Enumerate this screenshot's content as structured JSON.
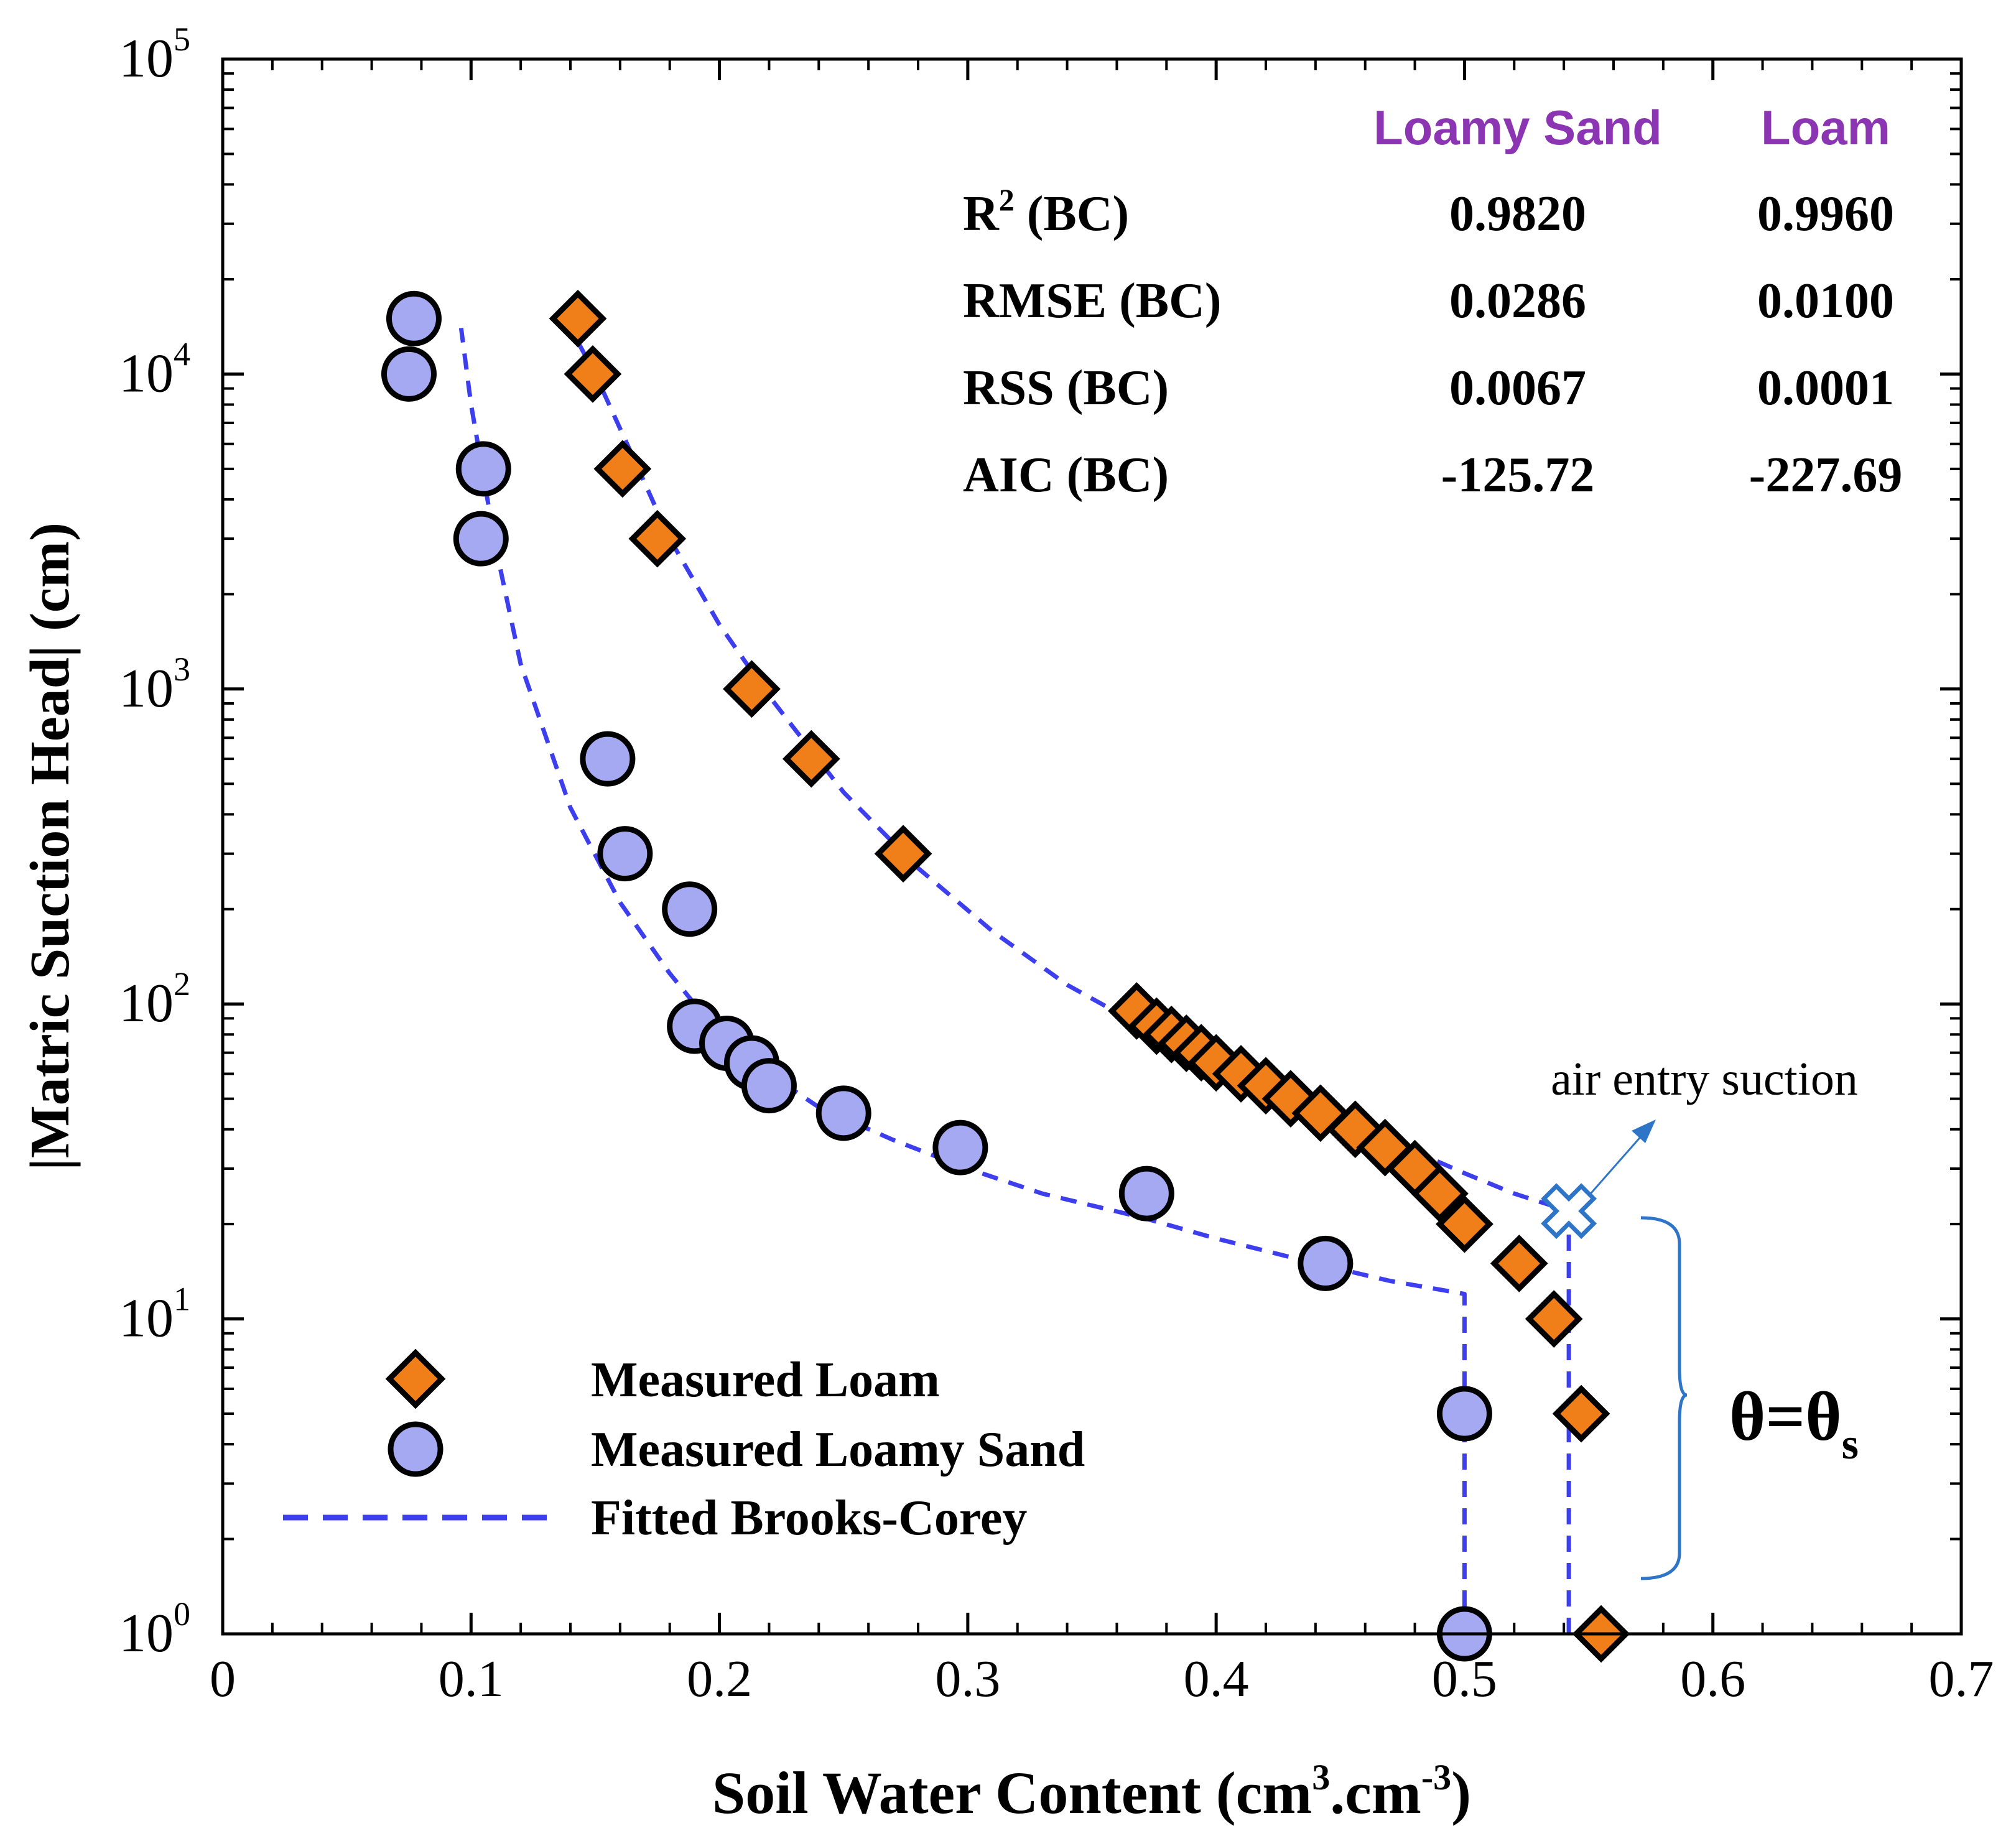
{
  "chart_data": {
    "type": "scatter",
    "title": "",
    "xlabel_main": "Soil Water Content (cm",
    "xlabel_sup1": "3",
    "xlabel_mid": ".cm",
    "xlabel_sup2": "-3",
    "xlabel_end": ")",
    "ylabel": "|Matric Suction Head| (cm)",
    "xlim": [
      0,
      0.7
    ],
    "ylim": [
      1,
      100000
    ],
    "yscale": "log",
    "x_ticks": [
      0,
      0.1,
      0.2,
      0.3,
      0.4,
      0.5,
      0.6,
      0.7
    ],
    "x_tick_labels": [
      "0",
      "0.1",
      "0.2",
      "0.3",
      "0.4",
      "0.5",
      "0.6",
      "0.7"
    ],
    "y_tick_bases": [
      "10",
      "10",
      "10",
      "10",
      "10",
      "10"
    ],
    "y_tick_exponents": [
      "0",
      "1",
      "2",
      "3",
      "4",
      "5"
    ],
    "series": [
      {
        "name": "Measured Loam",
        "marker": "diamond",
        "color": "#F07F1A",
        "x": [
          0.143,
          0.149,
          0.161,
          0.175,
          0.213,
          0.237,
          0.274,
          0.368,
          0.376,
          0.382,
          0.388,
          0.394,
          0.4,
          0.41,
          0.42,
          0.43,
          0.442,
          0.456,
          0.468,
          0.48,
          0.49,
          0.5,
          0.522,
          0.536,
          0.547,
          0.555
        ],
        "y": [
          15000,
          10000,
          5000,
          3000,
          1000,
          600,
          300,
          95,
          85,
          80,
          75,
          70,
          65,
          60,
          55,
          50,
          45,
          40,
          35,
          30,
          25,
          20,
          15,
          10,
          5,
          1
        ]
      },
      {
        "name": "Measured Loamy Sand",
        "marker": "circle",
        "color": "#A5A9F2",
        "x": [
          0.077,
          0.075,
          0.105,
          0.104,
          0.155,
          0.162,
          0.188,
          0.19,
          0.203,
          0.213,
          0.22,
          0.25,
          0.297,
          0.372,
          0.444,
          0.5,
          0.5
        ],
        "y": [
          15000,
          10000,
          5000,
          3000,
          600,
          300,
          200,
          85,
          75,
          65,
          55,
          45,
          35,
          25,
          15,
          5,
          1
        ]
      },
      {
        "name": "Fitted Brooks-Corey",
        "line": "dashed",
        "color": "#3D3FEF",
        "curves": [
          {
            "label": "Loamy Sand fit",
            "x": [
              0.5,
              0.5,
              0.5,
              0.47,
              0.44,
              0.4,
              0.37,
              0.33,
              0.3,
              0.27,
              0.24,
              0.22,
              0.2,
              0.18,
              0.16,
              0.14,
              0.12,
              0.11,
              0.1,
              0.096
            ],
            "y": [
              1,
              6,
              12,
              13.2,
              15,
              18,
              21,
              25,
              30,
              37,
              47,
              60,
              80,
              125,
              210,
              420,
              1200,
              2800,
              8000,
              14000
            ]
          },
          {
            "label": "Loam fit",
            "x": [
              0.542,
              0.542,
              0.542,
              0.52,
              0.5,
              0.48,
              0.46,
              0.44,
              0.42,
              0.4,
              0.37,
              0.34,
              0.31,
              0.28,
              0.25,
              0.22,
              0.2,
              0.18,
              0.165,
              0.15,
              0.14
            ],
            "y": [
              1,
              10,
              22,
              25,
              29,
              34,
              40,
              47,
              55,
              66,
              85,
              115,
              170,
              270,
              470,
              950,
              1600,
              3000,
              5500,
              10000,
              14000
            ]
          }
        ]
      }
    ],
    "legend_position": "bottom-left",
    "annotations": {
      "air_entry": {
        "text": "air entry suction",
        "x": 0.542,
        "y": 22
      },
      "theta_base": "θ=θ",
      "theta_sub": "s"
    }
  },
  "stats_table": {
    "headers": [
      "Loamy Sand",
      "Loam"
    ],
    "rows": [
      {
        "label": "R",
        "sup": "2",
        "suffix": " (BC)",
        "loamy_sand": "0.9820",
        "loam": "0.9960"
      },
      {
        "label": "RMSE (BC)",
        "sup": "",
        "suffix": "",
        "loamy_sand": "0.0286",
        "loam": "0.0100"
      },
      {
        "label": "RSS (BC)",
        "sup": "",
        "suffix": "",
        "loamy_sand": "0.0067",
        "loam": "0.0001"
      },
      {
        "label": "AIC (BC)",
        "sup": "",
        "suffix": "",
        "loamy_sand": "-125.72",
        "loam": "-227.69"
      }
    ]
  },
  "colors": {
    "header_purple": "#8B35B2",
    "annotation_blue": "#2E75C8",
    "axis": "#000000"
  }
}
